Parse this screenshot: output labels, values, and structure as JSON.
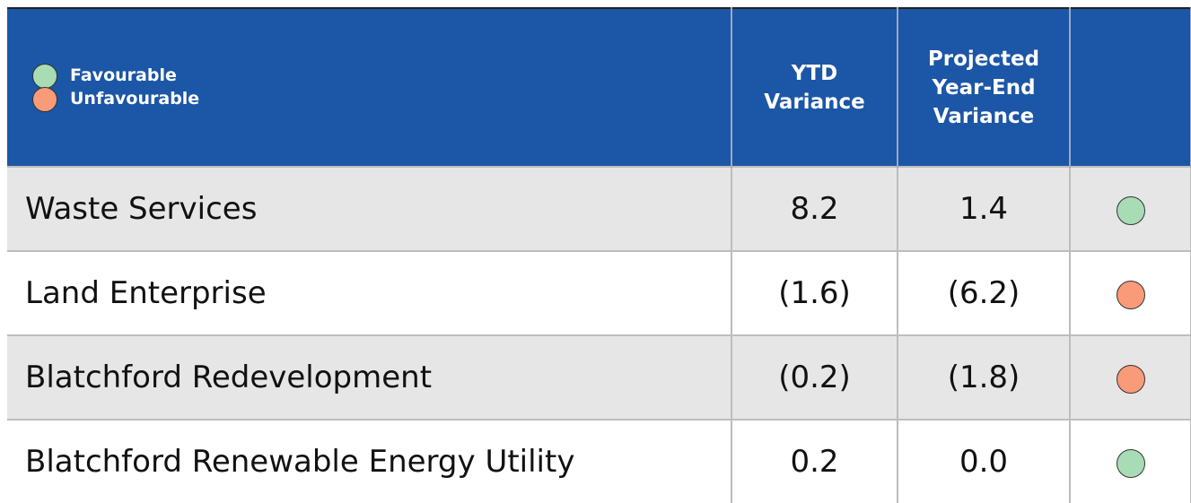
{
  "legend": [
    {
      "label": "Favourable",
      "color": "#a8dcb5"
    },
    {
      "label": "Unfavourable",
      "color": "#f99a78"
    }
  ],
  "columns": [
    "YTD Variance",
    "Projected Year-End Variance"
  ],
  "rows": [
    {
      "name": "Waste Services",
      "ytd": "8.2",
      "projected": "1.4",
      "status": "Favourable"
    },
    {
      "name": "Land Enterprise",
      "ytd": "(1.6)",
      "projected": "(6.2)",
      "status": "Unfavourable"
    },
    {
      "name": "Blatchford Redevelopment",
      "ytd": "(0.2)",
      "projected": "(1.8)",
      "status": "Unfavourable"
    },
    {
      "name": "Blatchford Renewable Energy Utility",
      "ytd": "0.2",
      "projected": "0.0",
      "status": "Favourable"
    }
  ]
}
